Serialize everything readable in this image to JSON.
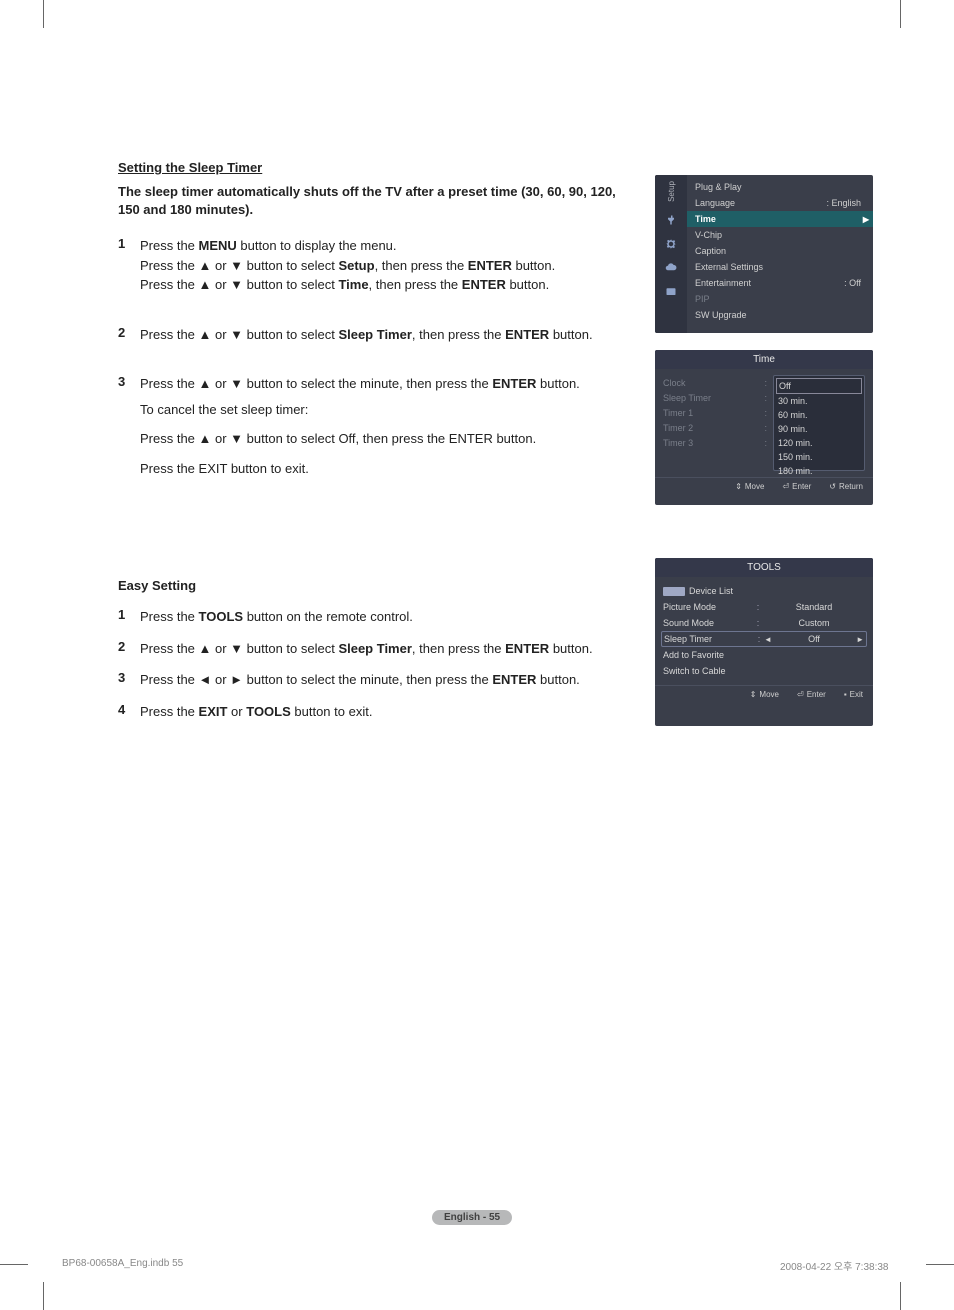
{
  "section_title": "Setting the Sleep Timer",
  "intro": "The sleep timer automatically shuts off the TV after a preset time (30, 60, 90, 120, 150 and 180 minutes).",
  "steps": [
    {
      "num": "1",
      "lines": [
        "Press the MENU button to display the menu.",
        "Press the ▲ or ▼ button to select Setup, then press the ENTER button.",
        "Press the ▲ or ▼ button to select Time, then press the ENTER button."
      ],
      "bold_words": [
        "MENU",
        "Setup",
        "ENTER",
        "Time",
        "ENTER"
      ]
    },
    {
      "num": "2",
      "lines": [
        "Press the ▲ or ▼ button to select Sleep Timer, then press the ENTER button."
      ],
      "bold_words": [
        "Sleep Timer",
        "ENTER"
      ]
    },
    {
      "num": "3",
      "lines": [
        "Press the ▲ or ▼ button to select the minute, then press the ENTER button."
      ],
      "bold_words": [
        "ENTER"
      ],
      "subhead": "To cancel the set sleep timer:",
      "sublines": [
        "Press the ▲ or ▼ button to select Off, then press the ENTER button.",
        "Press the EXIT button to exit."
      ],
      "sub_bold_words": [
        "Off",
        "ENTER",
        "EXIT"
      ]
    }
  ],
  "setup_menu": {
    "side_label": "Setup",
    "items": [
      {
        "label": "Plug & Play",
        "val": "",
        "dim": false
      },
      {
        "label": "Language",
        "val": ": English",
        "dim": false
      },
      {
        "label": "Time",
        "val": "",
        "dim": false,
        "highlight": true
      },
      {
        "label": "V-Chip",
        "val": "",
        "dim": false
      },
      {
        "label": "Caption",
        "val": "",
        "dim": false
      },
      {
        "label": "External Settings",
        "val": "",
        "dim": false
      },
      {
        "label": "Entertainment",
        "val": ": Off",
        "dim": false
      },
      {
        "label": "PIP",
        "val": "",
        "dim": true
      },
      {
        "label": "SW Upgrade",
        "val": "",
        "dim": false
      }
    ]
  },
  "time_menu": {
    "title": "Time",
    "left": [
      "Clock",
      "Sleep Timer",
      "Timer 1",
      "Timer 2",
      "Timer 3"
    ],
    "options": [
      "Off",
      "30 min.",
      "60 min.",
      "90 min.",
      "120 min.",
      "150 min.",
      "180 min."
    ],
    "selected_index": 0,
    "foot": {
      "move": "Move",
      "enter": "Enter",
      "return": "Return"
    }
  },
  "easy_title": "Easy Setting",
  "easy_steps": [
    {
      "num": "1",
      "text": "Press the TOOLS button on the remote control.",
      "bold": [
        "TOOLS"
      ]
    },
    {
      "num": "2",
      "text": "Press the ▲ or ▼ button to select Sleep Timer, then press the ENTER button.",
      "bold": [
        "Sleep Timer",
        "ENTER"
      ]
    },
    {
      "num": "3",
      "text": "Press the ◄ or ► button to select the minute, then press the ENTER button.",
      "bold": [
        "ENTER"
      ]
    },
    {
      "num": "4",
      "text": "Press the EXIT or TOOLS button to exit.",
      "bold": [
        "EXIT",
        "TOOLS"
      ]
    }
  ],
  "tools_menu": {
    "title": "TOOLS",
    "rows": [
      {
        "label": "Device List",
        "val": "",
        "anynet": true
      },
      {
        "label": "Picture Mode",
        "sep": ":",
        "val": "Standard"
      },
      {
        "label": "Sound Mode",
        "sep": ":",
        "val": "Custom"
      },
      {
        "label": "Sleep Timer",
        "sep": ":",
        "val": "Off",
        "boxed": true
      },
      {
        "label": "Add to Favorite",
        "val": ""
      },
      {
        "label": "Switch to Cable",
        "val": ""
      }
    ],
    "foot": {
      "move": "Move",
      "enter": "Enter",
      "exit": "Exit"
    }
  },
  "page_badge": "English - 55",
  "print_left": "BP68-00658A_Eng.indb   55",
  "print_right": "2008-04-22   오후 7:38:38",
  "colors": {
    "panel_bg": "#3a3e4a",
    "panel_side": "#2f3340",
    "highlight": "#1f5f66",
    "dim_text": "#7a7f8a",
    "page_badge_bg": "#b7b8b9"
  }
}
